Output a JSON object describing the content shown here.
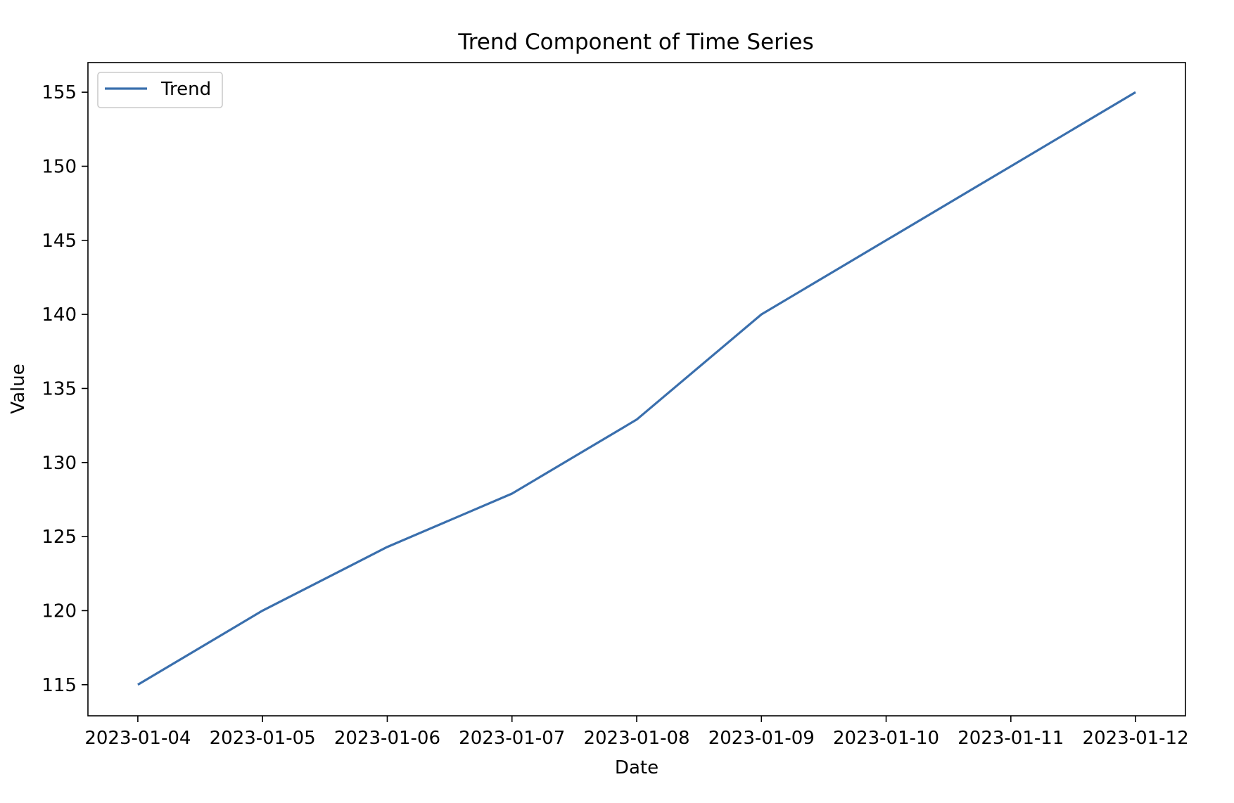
{
  "chart_data": {
    "type": "line",
    "title": "Trend Component of Time Series",
    "xlabel": "Date",
    "ylabel": "Value",
    "x": [
      "2023-01-04",
      "2023-01-05",
      "2023-01-06",
      "2023-01-07",
      "2023-01-08",
      "2023-01-09",
      "2023-01-10",
      "2023-01-11",
      "2023-01-12"
    ],
    "x_tick_labels": [
      "2023-01-04",
      "2023-01-05",
      "2023-01-06",
      "2023-01-07",
      "2023-01-08",
      "2023-01-09",
      "2023-01-10",
      "2023-01-11",
      "2023-01-12"
    ],
    "series": [
      {
        "name": "Trend",
        "color": "#3a6fad",
        "values": [
          115.0,
          120.0,
          124.3,
          127.9,
          132.9,
          140.0,
          145.0,
          150.0,
          155.0
        ]
      }
    ],
    "xlim": [
      "2023-01-03.6",
      "2023-01-12.4"
    ],
    "ylim": [
      112.9,
      157.0
    ],
    "y_ticks": [
      115,
      120,
      125,
      130,
      135,
      140,
      145,
      150,
      155
    ],
    "grid": false,
    "legend": "top-left"
  }
}
